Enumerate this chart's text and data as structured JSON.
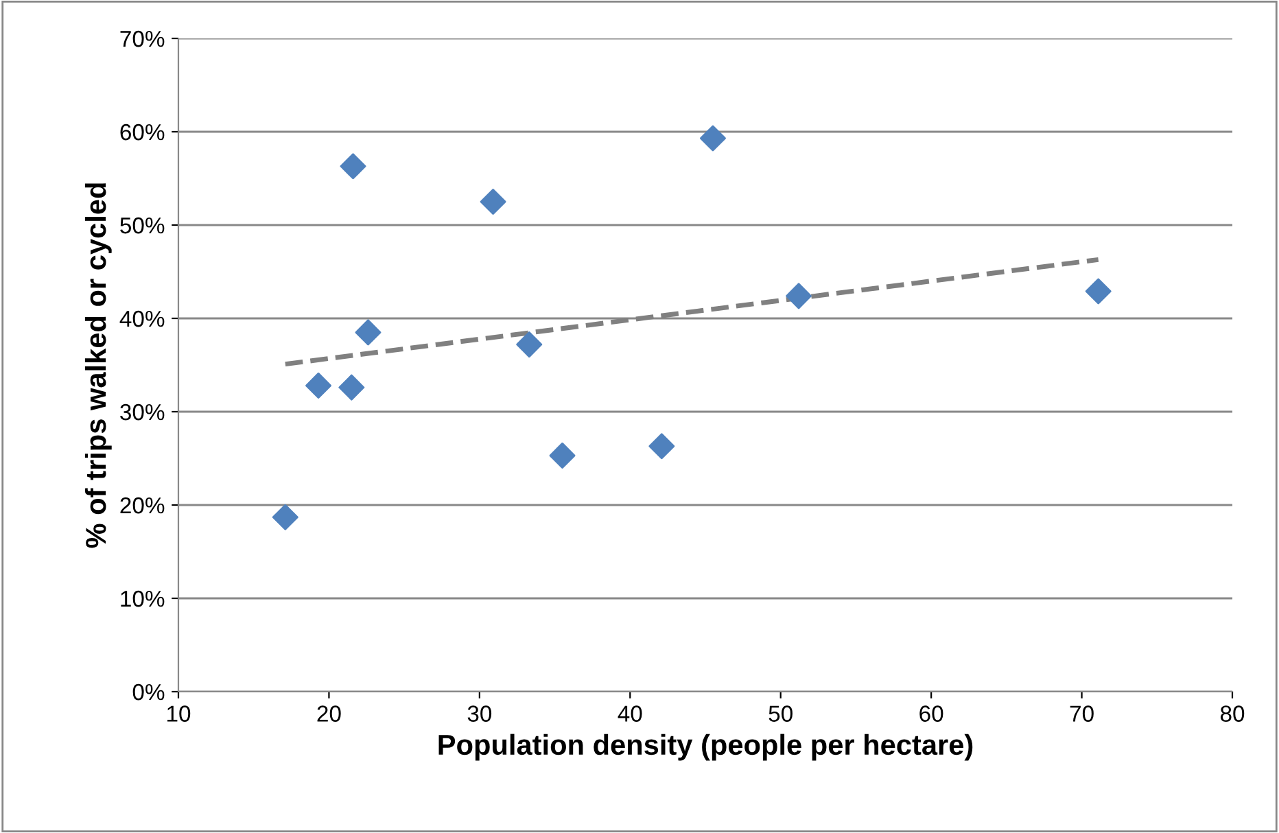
{
  "chart_data": {
    "type": "scatter",
    "xlabel": "Population density (people per hectare)",
    "ylabel": "% of trips walked or cycled",
    "xlim": [
      10,
      80
    ],
    "xticks": [
      10,
      20,
      30,
      40,
      50,
      60,
      70,
      80
    ],
    "ylim": [
      0,
      70
    ],
    "yticks": [
      {
        "value": 0,
        "label": "0%"
      },
      {
        "value": 10,
        "label": "10%"
      },
      {
        "value": 20,
        "label": "20%"
      },
      {
        "value": 30,
        "label": "30%"
      },
      {
        "value": 40,
        "label": "40%"
      },
      {
        "value": 50,
        "label": "50%"
      },
      {
        "value": 60,
        "label": "60%"
      },
      {
        "value": 70,
        "label": "70%"
      }
    ],
    "grid": "y",
    "legend": false,
    "series": [
      {
        "color": "#4f81bd",
        "marker": "diamond",
        "x": [
          17.1,
          19.3,
          21.5,
          21.6,
          22.6,
          30.9,
          33.3,
          35.5,
          42.1,
          45.5,
          51.2,
          71.1
        ],
        "values": [
          18.7,
          32.8,
          32.6,
          56.3,
          38.5,
          52.5,
          37.2,
          25.3,
          26.3,
          59.3,
          42.4,
          42.9
        ]
      },
      {
        "type": "line",
        "color": "#808080",
        "line_style": "dashed",
        "marker": "none",
        "x": [
          17.1,
          71.1
        ],
        "values": [
          35.1,
          46.3
        ]
      }
    ]
  }
}
